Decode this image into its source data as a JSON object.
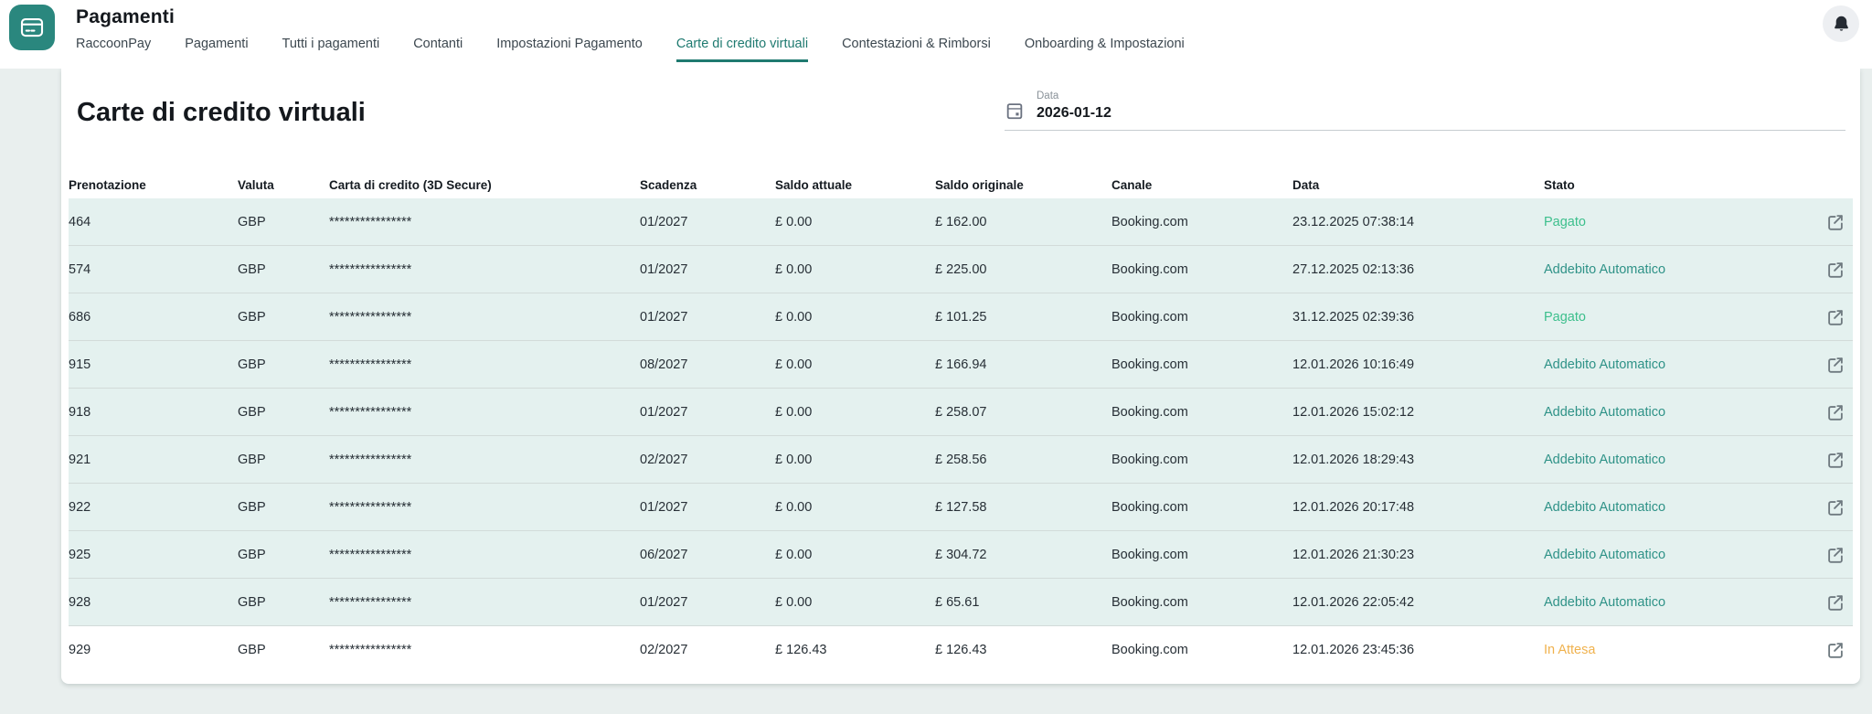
{
  "header": {
    "title": "Pagamenti",
    "nav": [
      {
        "label": "RaccoonPay",
        "active": false
      },
      {
        "label": "Pagamenti",
        "active": false
      },
      {
        "label": "Tutti i pagamenti",
        "active": false
      },
      {
        "label": "Contanti",
        "active": false
      },
      {
        "label": "Impostazioni Pagamento",
        "active": false
      },
      {
        "label": "Carte di credito virtuali",
        "active": true
      },
      {
        "label": "Contestazioni & Rimborsi",
        "active": false
      },
      {
        "label": "Onboarding & Impostazioni",
        "active": false
      }
    ]
  },
  "main": {
    "heading": "Carte di credito virtuali",
    "date_filter": {
      "label": "Data",
      "value": "2026-01-12"
    }
  },
  "table": {
    "columns": [
      {
        "id": "prenotazione",
        "label": "Prenotazione"
      },
      {
        "id": "valuta",
        "label": "Valuta"
      },
      {
        "id": "carta",
        "label": "Carta di credito (3D Secure)"
      },
      {
        "id": "scadenza",
        "label": "Scadenza"
      },
      {
        "id": "saldo_attuale",
        "label": "Saldo attuale"
      },
      {
        "id": "saldo_originale",
        "label": "Saldo originale"
      },
      {
        "id": "canale",
        "label": "Canale"
      },
      {
        "id": "data",
        "label": "Data"
      },
      {
        "id": "stato",
        "label": "Stato"
      }
    ],
    "rows": [
      {
        "prenotazione": "464",
        "valuta": "GBP",
        "carta": "****************",
        "scadenza": "01/2027",
        "saldo_attuale": "£ 0.00",
        "saldo_originale": "£ 162.00",
        "canale": "Booking.com",
        "data": "23.12.2025 07:38:14",
        "stato": "Pagato",
        "stato_color": "green",
        "highlighted": true
      },
      {
        "prenotazione": "574",
        "valuta": "GBP",
        "carta": "****************",
        "scadenza": "01/2027",
        "saldo_attuale": "£ 0.00",
        "saldo_originale": "£ 225.00",
        "canale": "Booking.com",
        "data": "27.12.2025 02:13:36",
        "stato": "Addebito Automatico",
        "stato_color": "teal",
        "highlighted": true
      },
      {
        "prenotazione": "686",
        "valuta": "GBP",
        "carta": "****************",
        "scadenza": "01/2027",
        "saldo_attuale": "£ 0.00",
        "saldo_originale": "£ 101.25",
        "canale": "Booking.com",
        "data": "31.12.2025 02:39:36",
        "stato": "Pagato",
        "stato_color": "green",
        "highlighted": true
      },
      {
        "prenotazione": "915",
        "valuta": "GBP",
        "carta": "****************",
        "scadenza": "08/2027",
        "saldo_attuale": "£ 0.00",
        "saldo_originale": "£ 166.94",
        "canale": "Booking.com",
        "data": "12.01.2026 10:16:49",
        "stato": "Addebito Automatico",
        "stato_color": "teal",
        "highlighted": true
      },
      {
        "prenotazione": "918",
        "valuta": "GBP",
        "carta": "****************",
        "scadenza": "01/2027",
        "saldo_attuale": "£ 0.00",
        "saldo_originale": "£ 258.07",
        "canale": "Booking.com",
        "data": "12.01.2026 15:02:12",
        "stato": "Addebito Automatico",
        "stato_color": "teal",
        "highlighted": true
      },
      {
        "prenotazione": "921",
        "valuta": "GBP",
        "carta": "****************",
        "scadenza": "02/2027",
        "saldo_attuale": "£ 0.00",
        "saldo_originale": "£ 258.56",
        "canale": "Booking.com",
        "data": "12.01.2026 18:29:43",
        "stato": "Addebito Automatico",
        "stato_color": "teal",
        "highlighted": true
      },
      {
        "prenotazione": "922",
        "valuta": "GBP",
        "carta": "****************",
        "scadenza": "01/2027",
        "saldo_attuale": "£ 0.00",
        "saldo_originale": "£ 127.58",
        "canale": "Booking.com",
        "data": "12.01.2026 20:17:48",
        "stato": "Addebito Automatico",
        "stato_color": "teal",
        "highlighted": true
      },
      {
        "prenotazione": "925",
        "valuta": "GBP",
        "carta": "****************",
        "scadenza": "06/2027",
        "saldo_attuale": "£ 0.00",
        "saldo_originale": "£ 304.72",
        "canale": "Booking.com",
        "data": "12.01.2026 21:30:23",
        "stato": "Addebito Automatico",
        "stato_color": "teal",
        "highlighted": true
      },
      {
        "prenotazione": "928",
        "valuta": "GBP",
        "carta": "****************",
        "scadenza": "01/2027",
        "saldo_attuale": "£ 0.00",
        "saldo_originale": "£ 65.61",
        "canale": "Booking.com",
        "data": "12.01.2026 22:05:42",
        "stato": "Addebito Automatico",
        "stato_color": "teal",
        "highlighted": true
      },
      {
        "prenotazione": "929",
        "valuta": "GBP",
        "carta": "****************",
        "scadenza": "02/2027",
        "saldo_attuale": "£ 126.43",
        "saldo_originale": "£ 126.43",
        "canale": "Booking.com",
        "data": "12.01.2026 23:45:36",
        "stato": "In Attesa",
        "stato_color": "amber",
        "highlighted": false
      }
    ]
  },
  "colors": {
    "brand_teal": "#2a877e",
    "active_tab": "#1f7a70",
    "page_background": "#e9efee",
    "row_highlight": "#e4f1ef",
    "status": {
      "green": "#3cbf8c",
      "teal": "#2e9287",
      "amber": "#f0b24e"
    }
  }
}
